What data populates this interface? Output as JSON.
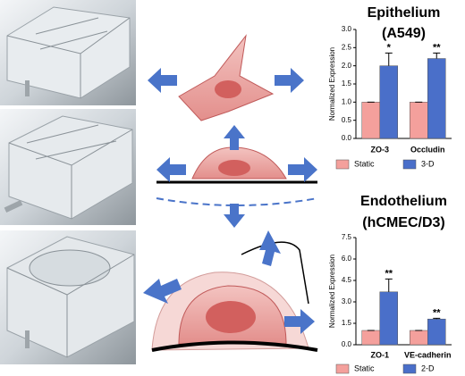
{
  "chart_data": [
    {
      "type": "bar",
      "title": "Epithelium",
      "subtitle": "(A549)",
      "y_label": "Normalized Expression",
      "categories": [
        "ZO-3",
        "Occludin"
      ],
      "series": [
        {
          "name": "Static",
          "color": "#f4a09c",
          "values": [
            1,
            1
          ],
          "errors": [
            0,
            0
          ]
        },
        {
          "name": "3-D",
          "color": "#4a6fc9",
          "values": [
            2.0,
            2.2
          ],
          "errors": [
            0.35,
            0.15
          ]
        }
      ],
      "annotations": [
        "*",
        "**"
      ],
      "ylim": [
        0,
        3
      ],
      "yticks": [
        {
          "value": 0,
          "label": "0.0"
        },
        {
          "value": 0.5,
          "label": "0.5"
        },
        {
          "value": 1,
          "label": "1.0"
        },
        {
          "value": 1.5,
          "label": "1.5"
        },
        {
          "value": 2,
          "label": "2.0"
        },
        {
          "value": 2.5,
          "label": "2.5"
        },
        {
          "value": 3,
          "label": "3.0"
        }
      ]
    },
    {
      "type": "bar",
      "title": "Endothelium",
      "subtitle": "(hCMEC/D3)",
      "y_label": "Normalized Expression",
      "categories": [
        "ZO-1",
        "VE-cadherin"
      ],
      "series": [
        {
          "name": "Static",
          "color": "#f4a09c",
          "values": [
            1,
            1
          ],
          "errors": [
            0,
            0
          ]
        },
        {
          "name": "2-D",
          "color": "#4a6fc9",
          "values": [
            3.7,
            1.8
          ],
          "errors": [
            0.9,
            0.05
          ]
        }
      ],
      "annotations": [
        "**",
        "**"
      ],
      "ylim": [
        0,
        7.5
      ],
      "yticks": [
        {
          "value": 0,
          "label": "0.0"
        },
        {
          "value": 1.5,
          "label": "1.5"
        },
        {
          "value": 3,
          "label": "3.0"
        },
        {
          "value": 4.5,
          "label": "4.5"
        },
        {
          "value": 6,
          "label": "6.0"
        },
        {
          "value": 7.5,
          "label": "7.5"
        }
      ]
    }
  ]
}
